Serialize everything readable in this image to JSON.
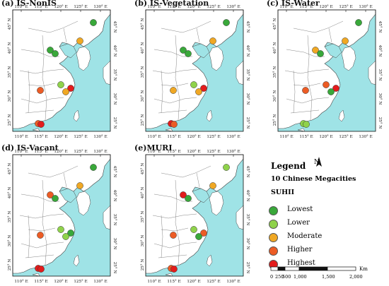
{
  "panels": [
    {
      "id": "a",
      "title": "(a) IS-NonIS",
      "dots": [
        {
          "city": "Harbin",
          "color": "#39a83a"
        },
        {
          "city": "Beijing",
          "color": "#39a83a"
        },
        {
          "city": "Tianjin",
          "color": "#39a83a"
        },
        {
          "city": "Shenyang",
          "color": "#f0a824"
        },
        {
          "city": "Nanjing",
          "color": "#8fd24b"
        },
        {
          "city": "Shanghai",
          "color": "#e31c1c"
        },
        {
          "city": "Hangzhou",
          "color": "#f0a824"
        },
        {
          "city": "Wuhan",
          "color": "#ec5c25"
        },
        {
          "city": "Guangzhou",
          "color": "#ec5c25"
        },
        {
          "city": "Shenzhen",
          "color": "#e31c1c"
        }
      ]
    },
    {
      "id": "b",
      "title": "(b) IS-Vegetation",
      "dots": [
        {
          "city": "Harbin",
          "color": "#39a83a"
        },
        {
          "city": "Beijing",
          "color": "#39a83a"
        },
        {
          "city": "Tianjin",
          "color": "#39a83a"
        },
        {
          "city": "Shenyang",
          "color": "#f0a824"
        },
        {
          "city": "Nanjing",
          "color": "#8fd24b"
        },
        {
          "city": "Shanghai",
          "color": "#e31c1c"
        },
        {
          "city": "Hangzhou",
          "color": "#f0a824"
        },
        {
          "city": "Wuhan",
          "color": "#f0a824"
        },
        {
          "city": "Guangzhou",
          "color": "#e31c1c"
        },
        {
          "city": "Shenzhen",
          "color": "#ec5c25"
        }
      ]
    },
    {
      "id": "c",
      "title": "(c) IS-Water",
      "dots": [
        {
          "city": "Harbin",
          "color": "#39a83a"
        },
        {
          "city": "Beijing",
          "color": "#f0a824"
        },
        {
          "city": "Tianjin",
          "color": "#39a83a"
        },
        {
          "city": "Shenyang",
          "color": "#f0a824"
        },
        {
          "city": "Nanjing",
          "color": "#ec5c25"
        },
        {
          "city": "Shanghai",
          "color": "#e31c1c"
        },
        {
          "city": "Hangzhou",
          "color": "#39a83a"
        },
        {
          "city": "Wuhan",
          "color": "#ec5c25"
        },
        {
          "city": "Guangzhou",
          "color": "#8fd24b"
        },
        {
          "city": "Shenzhen",
          "color": "#8fd24b"
        }
      ]
    },
    {
      "id": "d",
      "title": "(d) IS-Vacant",
      "dots": [
        {
          "city": "Harbin",
          "color": "#39a83a"
        },
        {
          "city": "Beijing",
          "color": "#ec5c25"
        },
        {
          "city": "Tianjin",
          "color": "#39a83a"
        },
        {
          "city": "Shenyang",
          "color": "#f0a824"
        },
        {
          "city": "Nanjing",
          "color": "#8fd24b"
        },
        {
          "city": "Shanghai",
          "color": "#39a83a"
        },
        {
          "city": "Hangzhou",
          "color": "#8fd24b"
        },
        {
          "city": "Wuhan",
          "color": "#ec5c25"
        },
        {
          "city": "Guangzhou",
          "color": "#e31c1c"
        },
        {
          "city": "Shenzhen",
          "color": "#e31c1c"
        }
      ]
    },
    {
      "id": "e",
      "title": "(e)MURI",
      "dots": [
        {
          "city": "Harbin",
          "color": "#8fd24b"
        },
        {
          "city": "Beijing",
          "color": "#e31c1c"
        },
        {
          "city": "Tianjin",
          "color": "#39a83a"
        },
        {
          "city": "Shenyang",
          "color": "#f0a824"
        },
        {
          "city": "Nanjing",
          "color": "#8fd24b"
        },
        {
          "city": "Shanghai",
          "color": "#ec5c25"
        },
        {
          "city": "Hangzhou",
          "color": "#39a83a"
        },
        {
          "city": "Wuhan",
          "color": "#ec5c25"
        },
        {
          "city": "Guangzhou",
          "color": "#ec5c25"
        },
        {
          "city": "Shenzhen",
          "color": "#e31c1c"
        }
      ]
    }
  ],
  "axes": {
    "lon": [
      "110° E",
      "115° E",
      "120° E",
      "125° E",
      "130° E"
    ],
    "lat": [
      "45° N",
      "40° N",
      "35° N",
      "30° N",
      "25° N"
    ]
  },
  "colors": {
    "ocean": "#9fe3e6",
    "land": "#ffffff",
    "border": "#444444"
  },
  "legend": {
    "title": "Legend",
    "subtitle": "10 Chinese Megacities",
    "group": "SUHII",
    "north": "N",
    "items": [
      {
        "label": "Lowest",
        "color": "#39a83a"
      },
      {
        "label": "Lower",
        "color": "#8fd24b"
      },
      {
        "label": "Moderate",
        "color": "#f0a824"
      },
      {
        "label": "Higher",
        "color": "#ec5c25"
      },
      {
        "label": "Highest",
        "color": "#e31c1c"
      }
    ],
    "scale": {
      "ticks": [
        "0",
        "250",
        "500",
        "1,000",
        "1,500",
        "2,000"
      ],
      "unit": "Km"
    }
  }
}
